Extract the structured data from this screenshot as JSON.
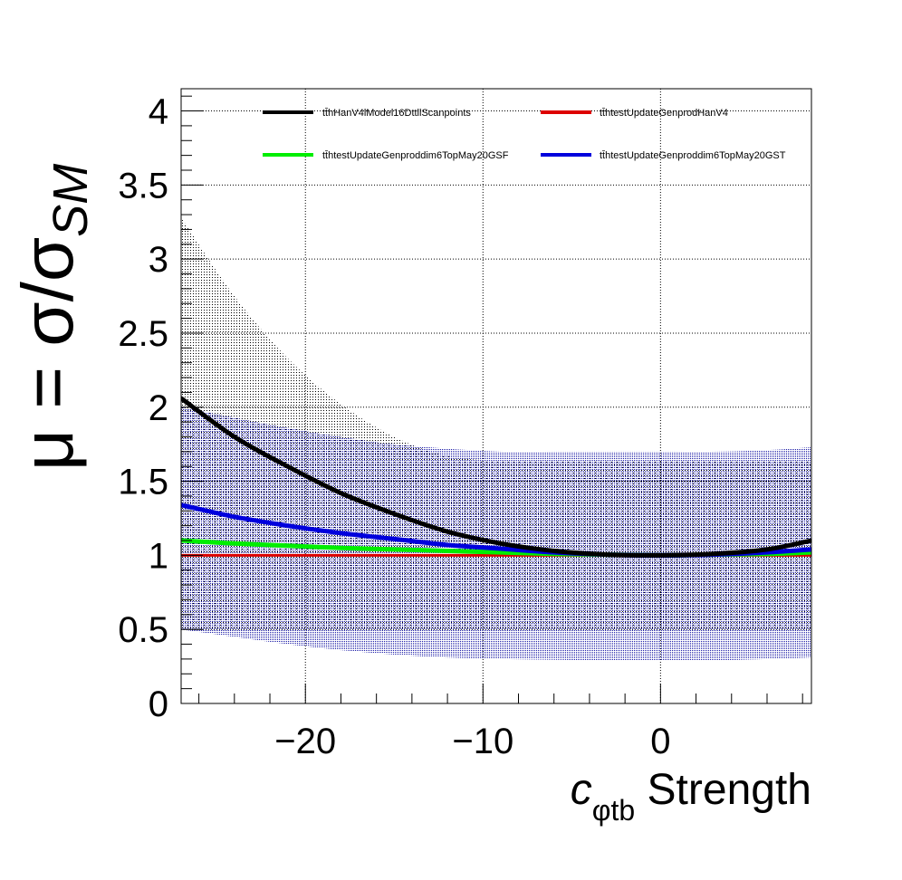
{
  "chart_data": {
    "type": "line",
    "title": "",
    "xlabel_main": "c",
    "xlabel_sub": "φtb",
    "xlabel_rest": " Strength",
    "ylabel_mu": "μ",
    "ylabel_eq": " = σ/σ",
    "ylabel_sub": "SM",
    "xlim": [
      -27,
      8.5
    ],
    "ylim": [
      0,
      4.15
    ],
    "xticks": [
      -20,
      -10,
      0
    ],
    "xtick_labels": [
      "−20",
      "−10",
      "0"
    ],
    "yticks": [
      0,
      0.5,
      1,
      1.5,
      2,
      2.5,
      3,
      3.5,
      4
    ],
    "ytick_labels": [
      "0",
      "0.5",
      "1",
      "1.5",
      "2",
      "2.5",
      "3",
      "3.5",
      "4"
    ],
    "grid": true,
    "legend_position": "top",
    "x": [
      -27,
      -24,
      -21,
      -18,
      -15,
      -12,
      -9,
      -6,
      -3,
      0,
      3,
      6,
      8.5
    ],
    "series": [
      {
        "name": "tt̄hHanV4lModel16DttllScanpoints",
        "color": "#000000",
        "values": [
          2.06,
          1.8,
          1.6,
          1.42,
          1.28,
          1.16,
          1.08,
          1.03,
          1.005,
          1.0,
          1.01,
          1.04,
          1.1
        ]
      },
      {
        "name": "tt̄htestUpdateGenprodHanV4",
        "color": "#dd0000",
        "values": [
          1.0,
          1.0,
          1.0,
          1.0,
          1.0,
          1.0,
          1.0,
          1.0,
          1.0,
          1.0,
          1.0,
          1.0,
          1.0
        ]
      },
      {
        "name": "tt̄htestUpdateGenproddim6TopMay20GSF",
        "color": "#00ee00",
        "values": [
          1.1,
          1.08,
          1.065,
          1.05,
          1.04,
          1.03,
          1.02,
          1.01,
          1.005,
          1.0,
          1.005,
          1.01,
          1.02
        ]
      },
      {
        "name": "tt̄htestUpdateGenproddim6TopMay20GST",
        "color": "#0000dd",
        "values": [
          1.34,
          1.26,
          1.2,
          1.15,
          1.11,
          1.07,
          1.045,
          1.02,
          1.005,
          1.0,
          1.005,
          1.02,
          1.04
        ]
      }
    ],
    "bands": [
      {
        "name": "black-envelope",
        "color": "#000000",
        "lower": [
          0.5,
          0.5,
          0.5,
          0.5,
          0.5,
          0.5,
          0.5,
          0.5,
          0.5,
          0.5,
          0.5,
          0.5,
          0.5
        ],
        "upper": [
          3.28,
          2.75,
          2.33,
          2.02,
          1.8,
          1.67,
          1.64,
          1.64,
          1.64,
          1.64,
          1.64,
          1.64,
          1.64
        ]
      },
      {
        "name": "blue-envelope",
        "color": "#1a1aa6",
        "lower": [
          0.5,
          0.45,
          0.4,
          0.36,
          0.33,
          0.31,
          0.3,
          0.295,
          0.29,
          0.29,
          0.29,
          0.3,
          0.31
        ],
        "upper": [
          2.0,
          1.93,
          1.86,
          1.8,
          1.75,
          1.72,
          1.7,
          1.7,
          1.7,
          1.7,
          1.7,
          1.71,
          1.73
        ]
      }
    ]
  }
}
